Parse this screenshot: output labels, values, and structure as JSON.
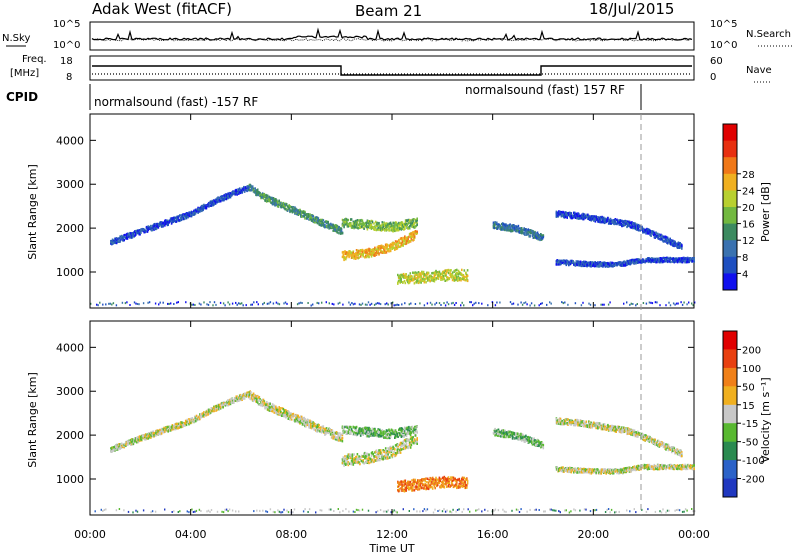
{
  "header": {
    "left": "Adak West (fitACF)",
    "center": "Beam 21",
    "right": "18/Jul/2015"
  },
  "top_panel": {
    "left_label": "N.Sky",
    "left_ticks": [
      "10^5",
      "10^0"
    ],
    "right_label": "N.Search",
    "right_ticks": [
      "10^5",
      "10^0"
    ]
  },
  "freq_panel": {
    "left_label_1": "Freq.",
    "left_label_2": "[MHz]",
    "left_ticks": [
      "18",
      "8"
    ],
    "right_label": "Nave",
    "right_ticks": [
      "60",
      "0"
    ]
  },
  "cpid": {
    "label": "CPID",
    "segments": [
      "normalsound (fast) -157 RF",
      "normalsound (fast) 157 RF"
    ]
  },
  "chart_data": [
    {
      "type": "heatmap",
      "panel": "power",
      "ylabel": "Slant Range [km]",
      "yticks": [
        "1000",
        "2000",
        "3000",
        "4000"
      ],
      "ylim": [
        180,
        4600
      ],
      "xlim": [
        0,
        24
      ],
      "colorbar": {
        "label": "Power [dB]",
        "ticks": [
          "4",
          "8",
          "12",
          "16",
          "20",
          "24",
          "28"
        ],
        "colors": [
          "#1010ee",
          "#1e4fc0",
          "#3a72b0",
          "#3c8a60",
          "#72b840",
          "#b8d030",
          "#f0b020",
          "#f07818",
          "#e83010",
          "#e00000"
        ]
      },
      "echo_bands": [
        {
          "t": [
            0.8,
            2,
            3,
            4,
            5,
            5.8,
            6.3
          ],
          "range": [
            1700,
            1950,
            2150,
            2350,
            2650,
            2850,
            2950
          ],
          "width": 120,
          "level": 1
        },
        {
          "t": [
            6.3,
            7,
            8,
            9,
            10
          ],
          "range": [
            2950,
            2700,
            2450,
            2200,
            1950
          ],
          "width": 150,
          "level": 3
        },
        {
          "t": [
            10,
            11,
            12,
            13
          ],
          "range": [
            2150,
            2100,
            2050,
            2150
          ],
          "width": 200,
          "level": 4
        },
        {
          "t": [
            10,
            11,
            12,
            13
          ],
          "range": [
            1400,
            1450,
            1600,
            1900
          ],
          "width": 200,
          "level": 6
        },
        {
          "t": [
            12.2,
            13,
            14,
            15
          ],
          "range": [
            850,
            900,
            950,
            950
          ],
          "width": 250,
          "level": 5
        },
        {
          "t": [
            16,
            17,
            18
          ],
          "range": [
            2100,
            2000,
            1800
          ],
          "width": 150,
          "level": 2
        },
        {
          "t": [
            18.5,
            19.5,
            20.5,
            21.5,
            22.5,
            23.5
          ],
          "range": [
            2350,
            2300,
            2200,
            2100,
            1850,
            1600
          ],
          "width": 130,
          "level": 1
        },
        {
          "t": [
            18.5,
            20,
            21,
            22,
            23,
            24
          ],
          "range": [
            1250,
            1200,
            1200,
            1300,
            1300,
            1300
          ],
          "width": 100,
          "level": 1
        }
      ]
    },
    {
      "type": "heatmap",
      "panel": "velocity",
      "ylabel": "Slant Range [km]",
      "yticks": [
        "1000",
        "2000",
        "3000",
        "4000"
      ],
      "ylim": [
        180,
        4600
      ],
      "xlim": [
        0,
        24
      ],
      "xticks": [
        "00:00",
        "04:00",
        "08:00",
        "12:00",
        "16:00",
        "20:00",
        "00:00"
      ],
      "xlabel": "Time UT",
      "colorbar": {
        "label": "Velocity [m s⁻¹]",
        "ticks": [
          "200",
          "100",
          "50",
          "15",
          "-15",
          "-50",
          "-100",
          "-200"
        ],
        "colors": [
          "#2038c0",
          "#2b62c8",
          "#2a8a50",
          "#58b830",
          "#c8c8c8",
          "#f0b020",
          "#f08018",
          "#e84010",
          "#e00000"
        ]
      },
      "echo_bands": [
        {
          "t": [
            0.8,
            2,
            3,
            4,
            5,
            5.8,
            6.3
          ],
          "range": [
            1700,
            1950,
            2150,
            2350,
            2650,
            2850,
            2950
          ],
          "width": 120,
          "level": 4
        },
        {
          "t": [
            6.3,
            7,
            8,
            9,
            10
          ],
          "range": [
            2950,
            2700,
            2450,
            2200,
            1950
          ],
          "width": 180,
          "level": 4
        },
        {
          "t": [
            10,
            11,
            12,
            13
          ],
          "range": [
            2150,
            2100,
            2050,
            2150
          ],
          "width": 200,
          "level": 3
        },
        {
          "t": [
            10,
            11,
            12,
            13
          ],
          "range": [
            1450,
            1500,
            1650,
            1950
          ],
          "width": 250,
          "level": 4
        },
        {
          "t": [
            12.2,
            13,
            14,
            15
          ],
          "range": [
            850,
            900,
            950,
            950
          ],
          "width": 250,
          "level": 6
        },
        {
          "t": [
            16,
            17,
            18
          ],
          "range": [
            2100,
            2000,
            1800
          ],
          "width": 150,
          "level": 3
        },
        {
          "t": [
            18.5,
            19.5,
            20.5,
            21.5,
            22.5,
            23.5
          ],
          "range": [
            2350,
            2300,
            2200,
            2100,
            1850,
            1600
          ],
          "width": 130,
          "level": 4
        },
        {
          "t": [
            18.5,
            20,
            21,
            22,
            23,
            24
          ],
          "range": [
            1250,
            1200,
            1200,
            1300,
            1300,
            1300
          ],
          "width": 100,
          "level": 4
        }
      ]
    }
  ]
}
